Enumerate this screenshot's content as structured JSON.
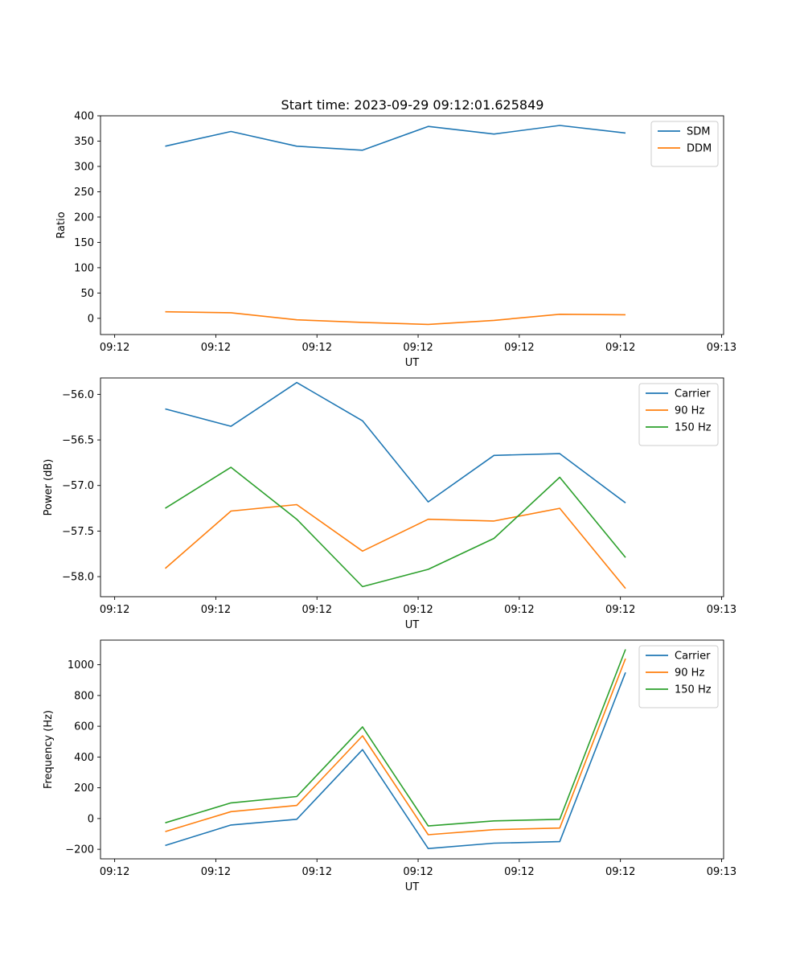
{
  "figure": {
    "title": "Start time: 2023-09-29 09:12:01.625849"
  },
  "chart_data": [
    {
      "type": "line",
      "title": "Start time: 2023-09-29 09:12:01.625849",
      "xlabel": "UT",
      "ylabel": "Ratio",
      "x_tick_labels": [
        "09:12",
        "09:12",
        "09:12",
        "09:12",
        "09:12",
        "09:12",
        "09:13"
      ],
      "x_ticks": [
        0,
        1,
        2,
        3,
        4,
        5,
        6
      ],
      "xlim": [
        -0.14,
        6.02
      ],
      "x": [
        0.5,
        1.15,
        1.8,
        2.45,
        3.1,
        3.75,
        4.4,
        5.05
      ],
      "yticks": [
        0,
        50,
        100,
        150,
        200,
        250,
        300,
        350,
        400
      ],
      "ylim": [
        -32,
        400
      ],
      "legend": "top-right",
      "series": [
        {
          "name": "SDM",
          "color": "#1f77b4",
          "values": [
            340,
            369,
            340,
            332,
            379,
            364,
            381,
            366
          ]
        },
        {
          "name": "DDM",
          "color": "#ff7f0e",
          "values": [
            13,
            11,
            -3,
            -8,
            -12,
            -4,
            8,
            7
          ]
        }
      ]
    },
    {
      "type": "line",
      "title": "",
      "xlabel": "UT",
      "ylabel": "Power (dB)",
      "x_tick_labels": [
        "09:12",
        "09:12",
        "09:12",
        "09:12",
        "09:12",
        "09:12",
        "09:13"
      ],
      "x_ticks": [
        0,
        1,
        2,
        3,
        4,
        5,
        6
      ],
      "xlim": [
        -0.14,
        6.02
      ],
      "x": [
        0.5,
        1.15,
        1.8,
        2.45,
        3.1,
        3.75,
        4.4,
        5.05
      ],
      "yticks": [
        -56.0,
        -56.5,
        -57.0,
        -57.5,
        -58.0
      ],
      "ytick_labels": [
        "−56.0",
        "−56.5",
        "−57.0",
        "−57.5",
        "−58.0"
      ],
      "ylim": [
        -58.22,
        -55.82
      ],
      "legend": "top-right",
      "series": [
        {
          "name": "Carrier",
          "color": "#1f77b4",
          "values": [
            -56.16,
            -56.35,
            -55.87,
            -56.29,
            -57.18,
            -56.67,
            -56.65,
            -57.19
          ]
        },
        {
          "name": "90 Hz",
          "color": "#ff7f0e",
          "values": [
            -57.91,
            -57.28,
            -57.21,
            -57.72,
            -57.37,
            -57.39,
            -57.25,
            -58.13
          ]
        },
        {
          "name": "150 Hz",
          "color": "#2ca02c",
          "values": [
            -57.25,
            -56.8,
            -57.37,
            -58.11,
            -57.92,
            -57.58,
            -56.91,
            -57.79
          ]
        }
      ]
    },
    {
      "type": "line",
      "title": "",
      "xlabel": "UT",
      "ylabel": "Frequency (Hz)",
      "x_tick_labels": [
        "09:12",
        "09:12",
        "09:12",
        "09:12",
        "09:12",
        "09:12",
        "09:13"
      ],
      "x_ticks": [
        0,
        1,
        2,
        3,
        4,
        5,
        6
      ],
      "xlim": [
        -0.14,
        6.02
      ],
      "x": [
        0.5,
        1.15,
        1.8,
        2.45,
        3.1,
        3.75,
        4.4,
        5.05
      ],
      "yticks": [
        -200,
        0,
        200,
        400,
        600,
        800,
        1000
      ],
      "ytick_labels": [
        "−200",
        "0",
        "200",
        "400",
        "600",
        "800",
        "1000"
      ],
      "ylim": [
        -262,
        1160
      ],
      "legend": "top-right",
      "series": [
        {
          "name": "Carrier",
          "color": "#1f77b4",
          "values": [
            -175,
            -42,
            -5,
            448,
            -195,
            -160,
            -150,
            950
          ]
        },
        {
          "name": "90 Hz",
          "color": "#ff7f0e",
          "values": [
            -85,
            45,
            85,
            538,
            -105,
            -72,
            -62,
            1040
          ]
        },
        {
          "name": "150 Hz",
          "color": "#2ca02c",
          "values": [
            -28,
            102,
            143,
            596,
            -48,
            -15,
            -5,
            1100
          ]
        }
      ]
    }
  ]
}
